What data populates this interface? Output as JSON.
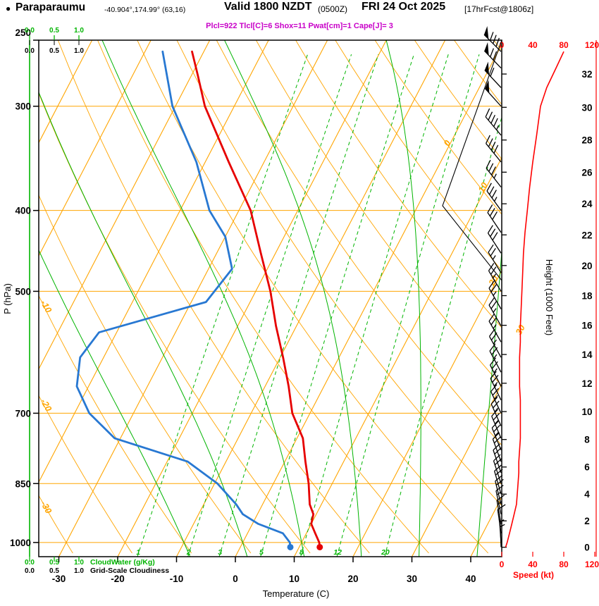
{
  "title": {
    "station_bullet": "●",
    "station": "Paraparaumu",
    "coords": "-40.904°,174.99° (63,16)",
    "valid": "Valid 1800 NZDT",
    "valid_z": "(0500Z)",
    "date": "FRI 24 Oct 2025",
    "fcst": "[17hrFcst@1806z]"
  },
  "params_line": "Plcl=922 Tlcl[C]=6 Shox=11 Pwat[cm]=1 Cape[J]= 3",
  "axes": {
    "pressure_label": "P (hPa)",
    "pressure_ticks": [
      250,
      300,
      400,
      500,
      700,
      850,
      1000
    ],
    "temp_label": "Temperature (C)",
    "temp_ticks": [
      -30,
      -20,
      -10,
      0,
      10,
      20,
      30,
      40
    ],
    "height_label": "Height (1000 Feet)",
    "height_ticks": [
      0,
      2,
      4,
      6,
      8,
      10,
      12,
      14,
      16,
      18,
      20,
      22,
      24,
      26,
      28,
      30,
      32
    ],
    "speed_label": "Speed (kt)",
    "speed_ticks": [
      0,
      40,
      80,
      120
    ],
    "cloud_scale_ticks": [
      "0.0",
      "0.5",
      "1.0"
    ],
    "cloudwater_label": "CloudWater (g/Kg)",
    "cloudiness_label": "Grid-Scale Cloudiness"
  },
  "plot": {
    "isotherm_labels": [
      0,
      10,
      20,
      30
    ],
    "dry_adiabat_labels": [
      -10,
      -20,
      -30
    ],
    "mixing_ratio_lines": [
      1,
      2,
      3,
      5,
      8,
      12,
      20
    ],
    "moist_adiabat_thetaw": [
      -10,
      0,
      10,
      20,
      30,
      40
    ]
  },
  "colors": {
    "grid_orange": "#FFA500",
    "green": "#00B400",
    "temp_red": "#E60000",
    "dew_blue": "#2878D2",
    "speed_red": "#FF0000",
    "magenta": "#C800C8",
    "black": "#000000"
  },
  "chart_data": {
    "type": "skewt-log-p-sounding",
    "pressure_range_hpa": [
      250,
      1040
    ],
    "temp_axis_range_c": [
      -33,
      45
    ],
    "temperature_c": [
      [
        1013,
        13.5
      ],
      [
        1000,
        13
      ],
      [
        975,
        11.5
      ],
      [
        950,
        10
      ],
      [
        925,
        9.5
      ],
      [
        900,
        8
      ],
      [
        850,
        6
      ],
      [
        800,
        3.5
      ],
      [
        750,
        1
      ],
      [
        700,
        -3
      ],
      [
        650,
        -6
      ],
      [
        600,
        -9.5
      ],
      [
        550,
        -13.5
      ],
      [
        500,
        -17.5
      ],
      [
        450,
        -22.5
      ],
      [
        400,
        -28
      ],
      [
        350,
        -36
      ],
      [
        300,
        -45
      ],
      [
        275,
        -49
      ],
      [
        258,
        -52
      ]
    ],
    "dewpoint_c": [
      [
        1013,
        8.5
      ],
      [
        1000,
        8
      ],
      [
        975,
        6
      ],
      [
        950,
        1
      ],
      [
        925,
        -2.5
      ],
      [
        900,
        -4.5
      ],
      [
        850,
        -9.5
      ],
      [
        800,
        -16.5
      ],
      [
        750,
        -31
      ],
      [
        700,
        -37.5
      ],
      [
        650,
        -42
      ],
      [
        600,
        -44
      ],
      [
        560,
        -43
      ],
      [
        515,
        -27.5
      ],
      [
        470,
        -26
      ],
      [
        430,
        -30
      ],
      [
        400,
        -35
      ],
      [
        350,
        -41.5
      ],
      [
        300,
        -50.5
      ],
      [
        258,
        -57
      ]
    ],
    "wind_barbs_p_kt_dir": [
      [
        1013,
        5,
        358
      ],
      [
        1000,
        7,
        356
      ],
      [
        975,
        10,
        352
      ],
      [
        950,
        13,
        350
      ],
      [
        925,
        16,
        348
      ],
      [
        900,
        19,
        346
      ],
      [
        875,
        20,
        344
      ],
      [
        850,
        21,
        342
      ],
      [
        825,
        22,
        341
      ],
      [
        800,
        22,
        340
      ],
      [
        775,
        23,
        338
      ],
      [
        750,
        24,
        337
      ],
      [
        725,
        24,
        336
      ],
      [
        700,
        24,
        335
      ],
      [
        675,
        24,
        334
      ],
      [
        650,
        23,
        333
      ],
      [
        625,
        23,
        332
      ],
      [
        600,
        23,
        331
      ],
      [
        575,
        24,
        330
      ],
      [
        550,
        24,
        330
      ],
      [
        525,
        25,
        330
      ],
      [
        500,
        26,
        329
      ],
      [
        475,
        27,
        328
      ],
      [
        450,
        28,
        327
      ],
      [
        425,
        30,
        326
      ],
      [
        400,
        33,
        324
      ],
      [
        375,
        36,
        322
      ],
      [
        350,
        40,
        321
      ],
      [
        325,
        45,
        320
      ],
      [
        300,
        50,
        318
      ],
      [
        285,
        58,
        317
      ],
      [
        270,
        70,
        316
      ],
      [
        258,
        80,
        315
      ]
    ],
    "cloudwater_profile": "zero at all levels",
    "grid_scale_cloudiness_profile": "zero at all levels"
  }
}
